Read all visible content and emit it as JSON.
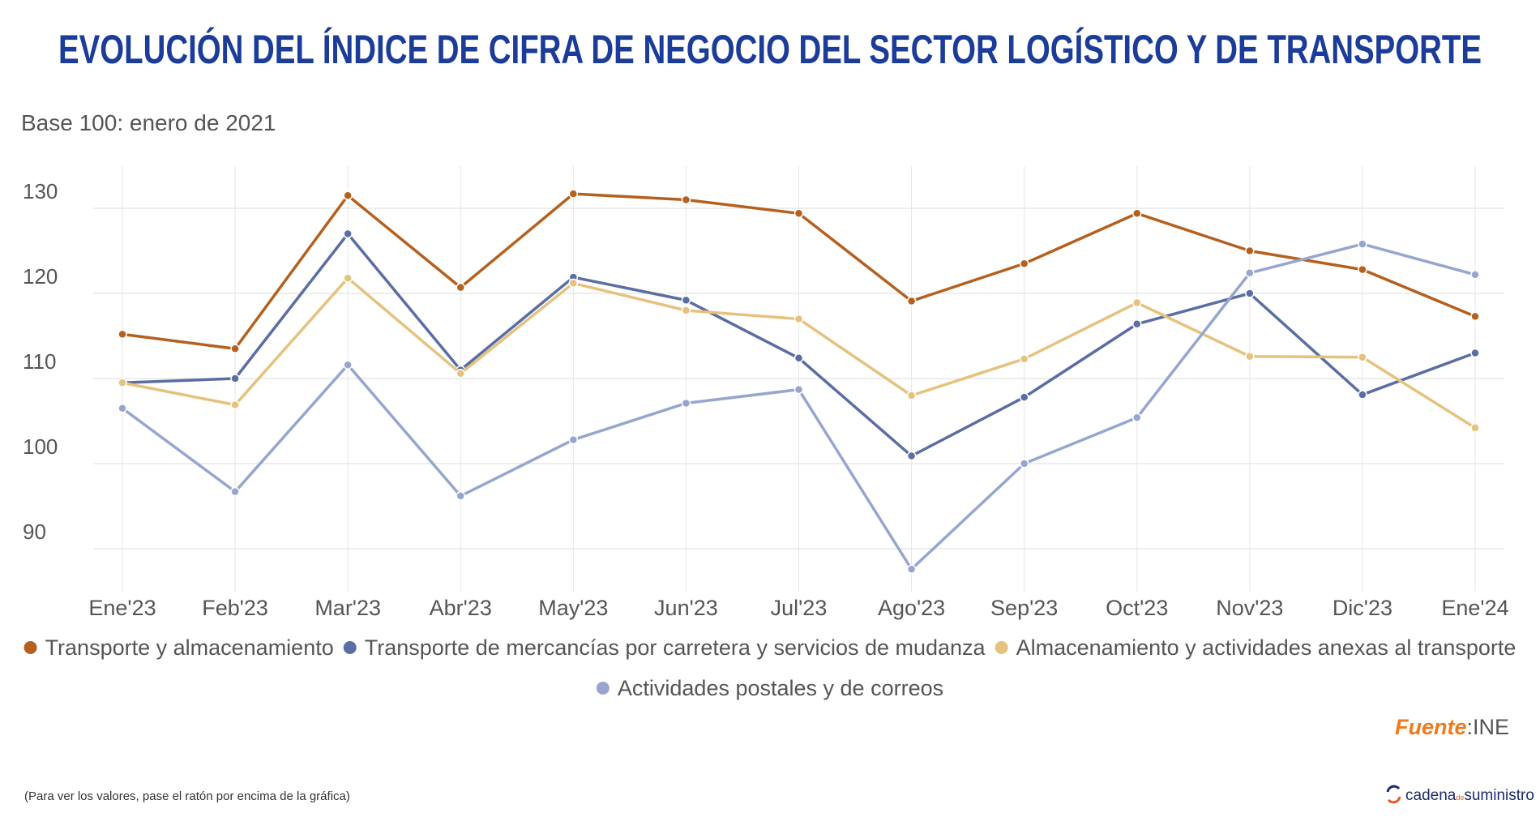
{
  "chart_data": {
    "type": "line",
    "title": "EVOLUCIÓN DEL ÍNDICE DE CIFRA DE NEGOCIO DEL SECTOR LOGÍSTICO Y DE TRANSPORTE",
    "subtitle": "Base 100: enero de 2021",
    "xlabel": "",
    "ylabel": "",
    "categories": [
      "Ene'23",
      "Feb'23",
      "Mar'23",
      "Abr'23",
      "May'23",
      "Jun'23",
      "Jul'23",
      "Ago'23",
      "Sep'23",
      "Oct'23",
      "Nov'23",
      "Dic'23",
      "Ene'24"
    ],
    "yticks": [
      90,
      100,
      110,
      120,
      130
    ],
    "ylim": [
      85.5,
      135
    ],
    "grid": true,
    "legend_position": "bottom",
    "series": [
      {
        "name": "Transporte y almacenamiento",
        "color": "#b5601e",
        "values": [
          115.2,
          113.5,
          131.5,
          120.7,
          131.7,
          131.0,
          129.4,
          119.1,
          123.5,
          129.4,
          125.0,
          122.8,
          117.3
        ]
      },
      {
        "name": "Transporte de mercancías por carretera y servicios de mudanza",
        "color": "#5a6ea3",
        "values": [
          109.5,
          110.0,
          127.0,
          111.0,
          121.9,
          119.2,
          112.4,
          100.9,
          107.8,
          116.4,
          120.0,
          108.1,
          113.0
        ]
      },
      {
        "name": "Almacenamiento y actividades anexas al transporte",
        "color": "#e6c27f",
        "values": [
          109.5,
          106.9,
          121.8,
          110.6,
          121.2,
          118.0,
          117.0,
          108.0,
          112.3,
          118.9,
          112.6,
          112.5,
          104.2
        ]
      },
      {
        "name": "Actividades postales y de correos",
        "color": "#97a6cf",
        "values": [
          106.5,
          96.7,
          111.6,
          96.2,
          102.8,
          107.1,
          108.7,
          87.6,
          100.0,
          105.4,
          122.4,
          125.8,
          122.2
        ]
      }
    ]
  },
  "source": {
    "label": "Fuente",
    "separator": ":",
    "value": "INE"
  },
  "footnote": "(Para ver los valores, pase el ratón por encima de la gráfica)",
  "logo": {
    "text_a": "cadena",
    "text_b": "de",
    "text_c": "suministro"
  }
}
